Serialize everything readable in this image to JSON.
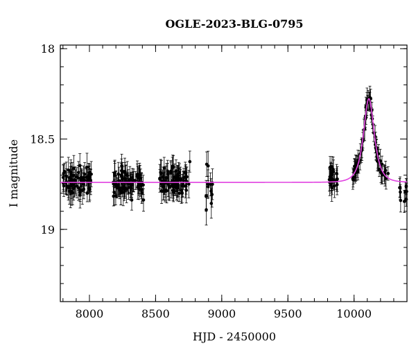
{
  "chart_data": {
    "type": "scatter",
    "title": "OGLE-2023-BLG-0795",
    "xlabel": "HJD - 2450000",
    "ylabel": "I magnitude",
    "xlim": [
      7780,
      10400
    ],
    "ylim": [
      19.4,
      17.98
    ],
    "y_inverted": true,
    "x_ticks": [
      8000,
      8500,
      9000,
      9500,
      10000
    ],
    "y_ticks": [
      18,
      18.5,
      19
    ],
    "x_minor_step": 100,
    "y_minor_step": 0.1,
    "grid": false,
    "colors": {
      "points": "#000000",
      "model": "#e040e0"
    },
    "model": {
      "type": "microlensing",
      "baseline_mag": 18.74,
      "t0": 10112,
      "u0": 0.8,
      "tE": 55
    },
    "series": [
      {
        "type": "scatter_errorbars",
        "seasons": [
          {
            "start": 7800,
            "end": 8020,
            "n": 70,
            "mean": 18.74,
            "scatter": 0.035,
            "err": 0.06
          },
          {
            "start": 8180,
            "end": 8410,
            "n": 80,
            "mean": 18.74,
            "scatter": 0.035,
            "err": 0.06
          },
          {
            "start": 8530,
            "end": 8760,
            "n": 80,
            "mean": 18.73,
            "scatter": 0.035,
            "err": 0.06
          },
          {
            "start": 8880,
            "end": 8930,
            "n": 12,
            "mean": 18.76,
            "scatter": 0.06,
            "err": 0.07
          },
          {
            "start": 9810,
            "end": 9880,
            "n": 25,
            "mean": 18.72,
            "scatter": 0.04,
            "err": 0.06
          },
          {
            "start": 9990,
            "end": 10260,
            "n": 70,
            "mean": "model",
            "scatter": 0.025,
            "err": 0.05
          },
          {
            "start": 10340,
            "end": 10400,
            "n": 10,
            "mean": 18.78,
            "scatter": 0.03,
            "err": 0.05
          }
        ]
      }
    ]
  }
}
